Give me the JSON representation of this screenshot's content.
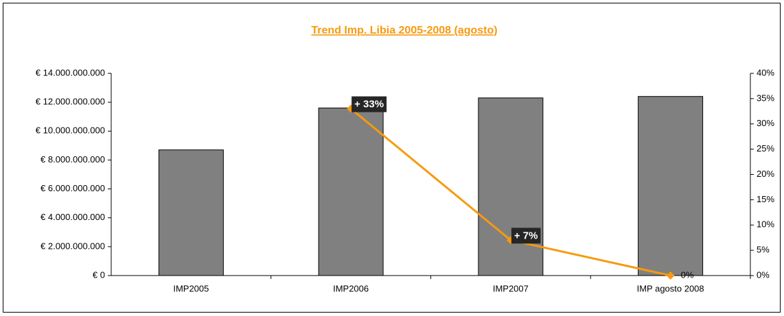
{
  "chart_data": {
    "type": "bar_line",
    "title": "Trend Imp. Libia 2005-2008 (agosto)",
    "categories": [
      "IMP2005",
      "IMP2006",
      "IMP2007",
      "IMP agosto 2008"
    ],
    "series": [
      {
        "type": "bar",
        "color": "#808080",
        "values": [
          8700000000,
          11600000000,
          12300000000,
          12400000000
        ]
      },
      {
        "type": "line",
        "color": "#f79a0e",
        "axis": "y2",
        "values": [
          null,
          33,
          7,
          0
        ],
        "value_labels": [
          null,
          "+ 33%",
          "+ 7%",
          "0%"
        ]
      }
    ],
    "ylim": [
      0,
      14000000000
    ],
    "yticks": [
      {
        "value": 0,
        "label": "€ 0"
      },
      {
        "value": 2000000000,
        "label": "€ 2.000.000.000"
      },
      {
        "value": 4000000000,
        "label": "€ 4.000.000.000"
      },
      {
        "value": 6000000000,
        "label": "€ 6.000.000.000"
      },
      {
        "value": 8000000000,
        "label": "€ 8.000.000.000"
      },
      {
        "value": 10000000000,
        "label": "€ 10.000.000.000"
      },
      {
        "value": 12000000000,
        "label": "€ 12.000.000.000"
      },
      {
        "value": 14000000000,
        "label": "€ 14.000.000.000"
      }
    ],
    "y2lim": [
      0,
      40
    ],
    "y2ticks": [
      {
        "value": 0,
        "label": "0%"
      },
      {
        "value": 5,
        "label": "5%"
      },
      {
        "value": 10,
        "label": "10%"
      },
      {
        "value": 15,
        "label": "15%"
      },
      {
        "value": 20,
        "label": "20%"
      },
      {
        "value": 25,
        "label": "25%"
      },
      {
        "value": 30,
        "label": "30%"
      },
      {
        "value": 35,
        "label": "35%"
      },
      {
        "value": 40,
        "label": "40%"
      }
    ],
    "grid": false
  }
}
